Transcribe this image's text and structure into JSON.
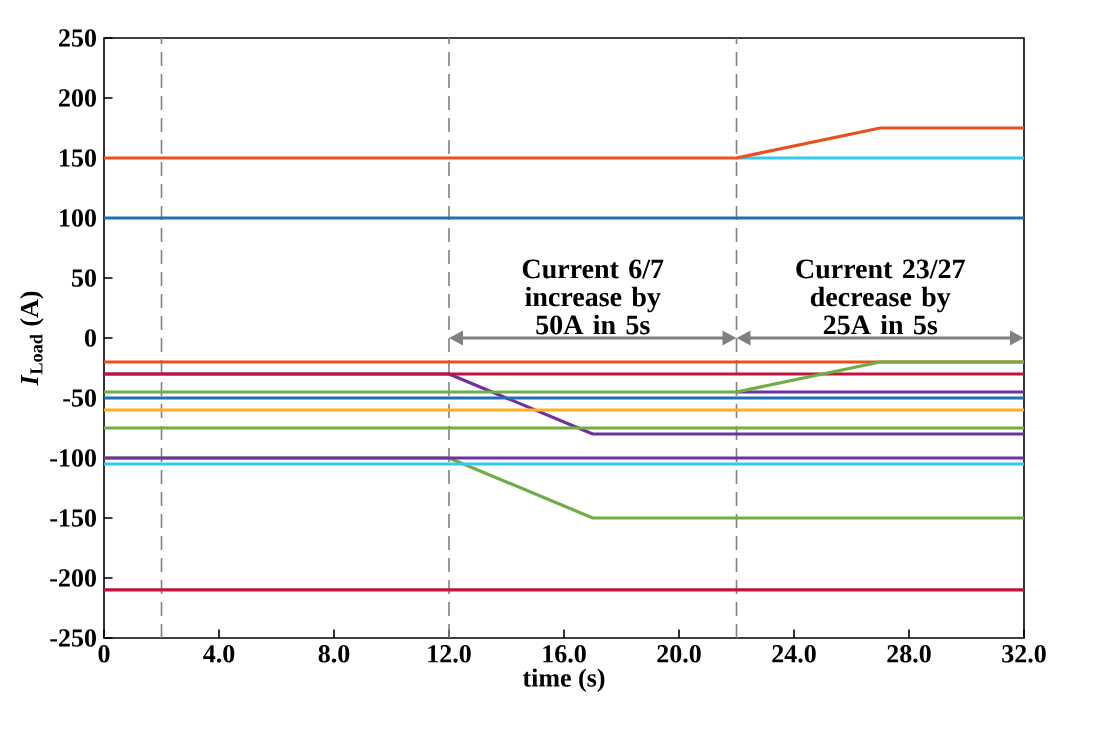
{
  "chart_data": {
    "type": "line",
    "xlabel": "time (s)",
    "ylabel": "*I*$_{Load}$ (A)",
    "xlim": [
      0,
      32
    ],
    "ylim": [
      -250,
      250
    ],
    "xticks": [
      0,
      {
        "value": 4,
        "label": "4.0"
      },
      {
        "value": 8,
        "label": "8.0"
      },
      {
        "value": 12,
        "label": "12.0"
      },
      {
        "value": 16,
        "label": "16.0"
      },
      {
        "value": 20,
        "label": "20.0"
      },
      {
        "value": 24,
        "label": "24.0"
      },
      {
        "value": 28,
        "label": "28.0"
      },
      {
        "value": 32,
        "label": "32.0"
      }
    ],
    "yticks": [
      -250,
      -200,
      -150,
      -100,
      -50,
      0,
      50,
      100,
      150,
      200,
      250
    ],
    "grid": false,
    "marker": "none",
    "line_style": "solid",
    "ref_lines": [
      {
        "axis": "x",
        "value": 2,
        "color": "#808080",
        "line_style": "dashed"
      },
      {
        "axis": "x",
        "value": 12,
        "color": "#808080",
        "line_style": "dashed"
      },
      {
        "axis": "x",
        "value": 22,
        "color": "#808080",
        "line_style": "dashed"
      }
    ],
    "annotations": [
      "Current 6/7 increase by 50A in 5s",
      "Current 23/27 decrease by 25A in 5s"
    ],
    "series": [
      {
        "color": "#33c8f0",
        "x": [
          22,
          32
        ],
        "values": [
          150,
          150
        ]
      },
      {
        "color": "#e8501e",
        "x": [
          0,
          22,
          27,
          32
        ],
        "values": [
          150,
          150,
          175,
          175
        ]
      },
      {
        "color": "#1f6fb4",
        "x": [
          0,
          32
        ],
        "values": [
          100,
          100
        ]
      },
      {
        "color": "#7030a0",
        "x": [
          0,
          12,
          17,
          32
        ],
        "values": [
          -30,
          -30,
          -80,
          -80
        ]
      },
      {
        "color": "#e8501e",
        "x": [
          0,
          32
        ],
        "values": [
          -20,
          -20
        ]
      },
      {
        "color": "#c0143c",
        "x": [
          0,
          32
        ],
        "values": [
          -30,
          -30
        ]
      },
      {
        "color": "#7030a0",
        "x": [
          22,
          32
        ],
        "values": [
          -45,
          -45
        ]
      },
      {
        "color": "#70ad47",
        "x": [
          0,
          22,
          27,
          32
        ],
        "values": [
          -45,
          -45,
          -20,
          -20
        ]
      },
      {
        "color": "#1f6fb4",
        "x": [
          0,
          32
        ],
        "values": [
          -50,
          -50
        ]
      },
      {
        "color": "#ffb020",
        "x": [
          0,
          32
        ],
        "values": [
          -60,
          -60
        ]
      },
      {
        "color": "#70ad47",
        "x": [
          0,
          32
        ],
        "values": [
          -75,
          -75
        ]
      },
      {
        "color": "#70ad47",
        "x": [
          0,
          12,
          17,
          32
        ],
        "values": [
          -100,
          -100,
          -150,
          -150
        ]
      },
      {
        "color": "#7030a0",
        "x": [
          0,
          32
        ],
        "values": [
          -100,
          -100
        ]
      },
      {
        "color": "#33c8f0",
        "x": [
          0,
          32
        ],
        "values": [
          -105,
          -105
        ]
      },
      {
        "color": "#c0143c",
        "x": [
          0,
          32
        ],
        "values": [
          -210,
          -210
        ]
      }
    ]
  }
}
